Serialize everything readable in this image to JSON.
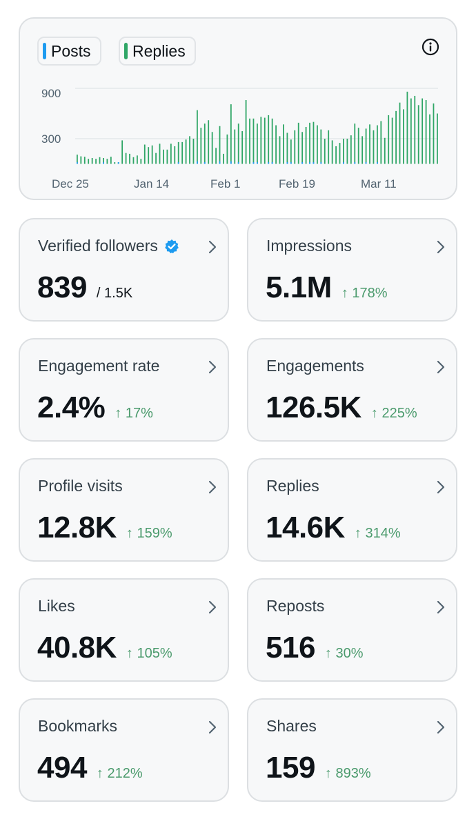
{
  "chart": {
    "legend": [
      {
        "label": "Posts",
        "color": "#1d9bf0"
      },
      {
        "label": "Replies",
        "color": "#2fa666"
      }
    ],
    "info_icon": "info-icon",
    "y_ticks": [
      "900",
      "300"
    ],
    "x_ticks": [
      "Dec 25",
      "Jan 14",
      "Feb 1",
      "Feb 19",
      "Mar 11"
    ]
  },
  "chart_data": {
    "type": "bar",
    "title": "",
    "xlabel": "",
    "ylabel": "",
    "ylim": [
      0,
      1000
    ],
    "y_ticks": [
      300,
      900
    ],
    "x_tick_labels": [
      "Dec 25",
      "Jan 14",
      "Feb 1",
      "Feb 19",
      "Mar 11"
    ],
    "series": [
      {
        "name": "Replies",
        "color": "#2fa666",
        "values": [
          110,
          90,
          85,
          60,
          70,
          60,
          80,
          70,
          60,
          85,
          20,
          20,
          280,
          130,
          120,
          80,
          100,
          60,
          230,
          200,
          220,
          130,
          240,
          170,
          170,
          240,
          210,
          260,
          260,
          290,
          330,
          300,
          640,
          430,
          480,
          520,
          380,
          190,
          450,
          120,
          350,
          710,
          410,
          480,
          390,
          760,
          540,
          540,
          480,
          560,
          550,
          580,
          540,
          460,
          330,
          470,
          370,
          290,
          400,
          490,
          380,
          440,
          490,
          500,
          460,
          410,
          300,
          400,
          280,
          210,
          250,
          300,
          300,
          340,
          480,
          430,
          330,
          420,
          470,
          400,
          460,
          510,
          310,
          580,
          550,
          630,
          730,
          650,
          860,
          780,
          810,
          700,
          780,
          760,
          590,
          720,
          600
        ]
      },
      {
        "name": "Posts",
        "color": "#1d9bf0",
        "values": [
          20,
          0,
          0,
          0,
          0,
          0,
          0,
          20,
          0,
          0,
          0,
          20,
          0,
          0,
          0,
          0,
          0,
          0,
          0,
          0,
          0,
          0,
          0,
          0,
          0,
          0,
          0,
          20,
          0,
          0,
          0,
          0,
          30,
          0,
          20,
          0,
          0,
          0,
          30,
          0,
          0,
          30,
          0,
          20,
          0,
          0,
          0,
          20,
          20,
          0,
          0,
          20,
          20,
          0,
          0,
          0,
          20,
          20,
          0,
          0,
          20,
          0,
          20,
          20,
          0,
          20,
          0,
          0,
          0,
          0,
          0,
          20,
          0,
          0,
          20,
          0,
          0,
          20,
          0,
          0,
          20,
          0,
          0,
          0,
          0,
          0,
          0,
          0,
          0,
          0,
          0,
          0,
          0,
          0,
          0,
          0,
          0
        ]
      }
    ]
  },
  "stats": [
    {
      "title": "Verified followers",
      "value": "839",
      "sub": "/ 1.5K",
      "verified": true
    },
    {
      "title": "Impressions",
      "value": "5.1M",
      "change": "↑ 178%"
    },
    {
      "title": "Engagement rate",
      "value": "2.4%",
      "change": "↑ 17%"
    },
    {
      "title": "Engagements",
      "value": "126.5K",
      "change": "↑ 225%"
    },
    {
      "title": "Profile visits",
      "value": "12.8K",
      "change": "↑ 159%"
    },
    {
      "title": "Replies",
      "value": "14.6K",
      "change": "↑ 314%"
    },
    {
      "title": "Likes",
      "value": "40.8K",
      "change": "↑ 105%"
    },
    {
      "title": "Reposts",
      "value": "516",
      "change": "↑ 30%"
    },
    {
      "title": "Bookmarks",
      "value": "494",
      "change": "↑ 212%"
    },
    {
      "title": "Shares",
      "value": "159",
      "change": "↑ 893%"
    }
  ]
}
